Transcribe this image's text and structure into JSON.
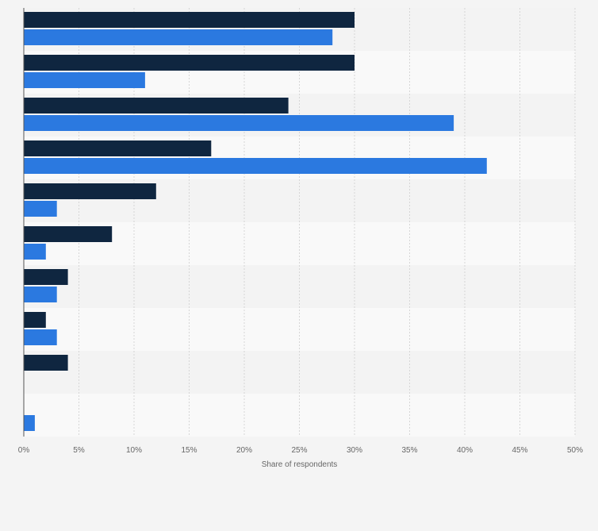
{
  "chart_data": {
    "type": "bar",
    "orientation": "horizontal",
    "categories": [
      "",
      "",
      "",
      "",
      "",
      "",
      "",
      "",
      "",
      ""
    ],
    "series": [
      {
        "values": [
          30,
          30,
          24,
          17,
          12,
          8,
          4,
          2,
          4,
          0
        ],
        "color": "#0f2640"
      },
      {
        "values": [
          28,
          11,
          39,
          42,
          3,
          2,
          3,
          3,
          0,
          1
        ],
        "color": "#2b79e0"
      }
    ],
    "xlabel": "Share of respondents",
    "xlim": [
      0,
      50
    ],
    "x_ticks": [
      0,
      5,
      10,
      15,
      20,
      25,
      30,
      35,
      40,
      45,
      50
    ],
    "x_tick_labels": [
      "0%",
      "5%",
      "10%",
      "15%",
      "20%",
      "25%",
      "30%",
      "35%",
      "40%",
      "45%",
      "50%"
    ],
    "grid": true,
    "band_colors": [
      "#f3f3f3",
      "#f9f9f9"
    ]
  }
}
